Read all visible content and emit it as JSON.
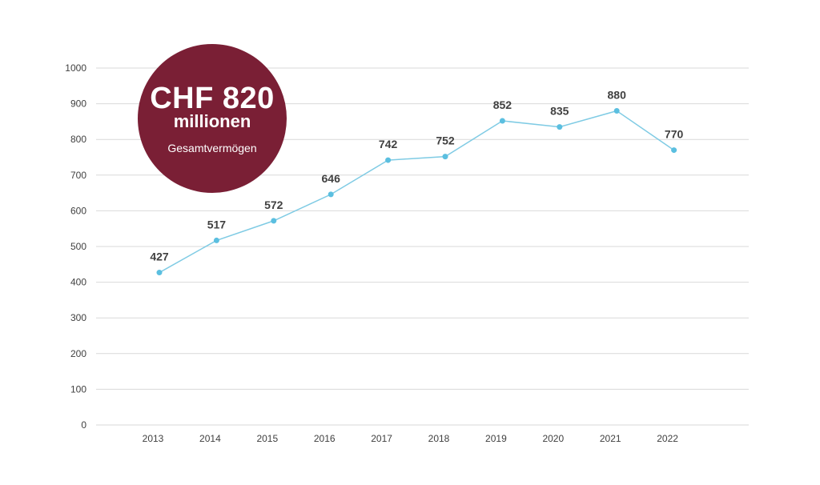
{
  "badge": {
    "amount": "CHF 820",
    "unit": "millionen",
    "caption": "Gesamtvermögen",
    "color": "#7a1f35"
  },
  "colors": {
    "line": "#7fcbe4",
    "marker": "#5bbfe0",
    "grid": "#d9d9d9",
    "tick_text": "#404040",
    "label_text": "#404040"
  },
  "chart_data": {
    "type": "line",
    "categories": [
      "2013",
      "2014",
      "2015",
      "2016",
      "2017",
      "2018",
      "2019",
      "2020",
      "2021",
      "2022"
    ],
    "series": [
      {
        "values": [
          427,
          517,
          572,
          646,
          742,
          752,
          852,
          835,
          880,
          770
        ],
        "data_labels": [
          "427",
          "517",
          "572",
          "646",
          "742",
          "752",
          "852",
          "835",
          "880",
          "770"
        ]
      }
    ],
    "ylim": [
      0,
      1000
    ],
    "yticks": [
      0,
      100,
      200,
      300,
      400,
      500,
      600,
      700,
      800,
      900,
      1000
    ],
    "title": "",
    "xlabel": "",
    "ylabel": "",
    "grid": true,
    "legend": "none"
  }
}
